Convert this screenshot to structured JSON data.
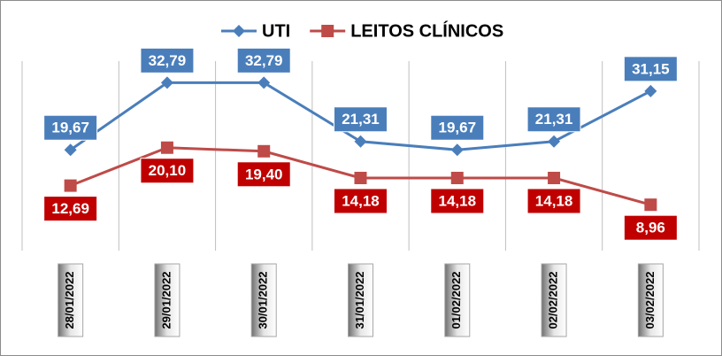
{
  "chart_data": {
    "type": "line",
    "categories": [
      "28/01/2022",
      "29/01/2022",
      "30/01/2022",
      "31/01/2022",
      "01/02/2022",
      "02/02/2022",
      "03/02/2022"
    ],
    "series": [
      {
        "name": "UTI",
        "color": "#4a7ebb",
        "marker": "diamond",
        "label_position": "above",
        "values": [
          19.67,
          32.79,
          32.79,
          21.31,
          19.67,
          21.31,
          31.15
        ],
        "value_labels": [
          "19,67",
          "32,79",
          "32,79",
          "21,31",
          "19,67",
          "21,31",
          "31,15"
        ]
      },
      {
        "name": "LEITOS CLÍNICOS",
        "color": "#be4b48",
        "label_color": "#c00000",
        "marker": "square",
        "label_position": "below",
        "values": [
          12.69,
          20.1,
          19.4,
          14.18,
          14.18,
          14.18,
          8.96
        ],
        "value_labels": [
          "12,69",
          "20,10",
          "19,40",
          "14,18",
          "14,18",
          "14,18",
          "8,96"
        ]
      }
    ],
    "ylim": [
      0,
      37
    ],
    "grid": "vertical",
    "legend": "top"
  }
}
